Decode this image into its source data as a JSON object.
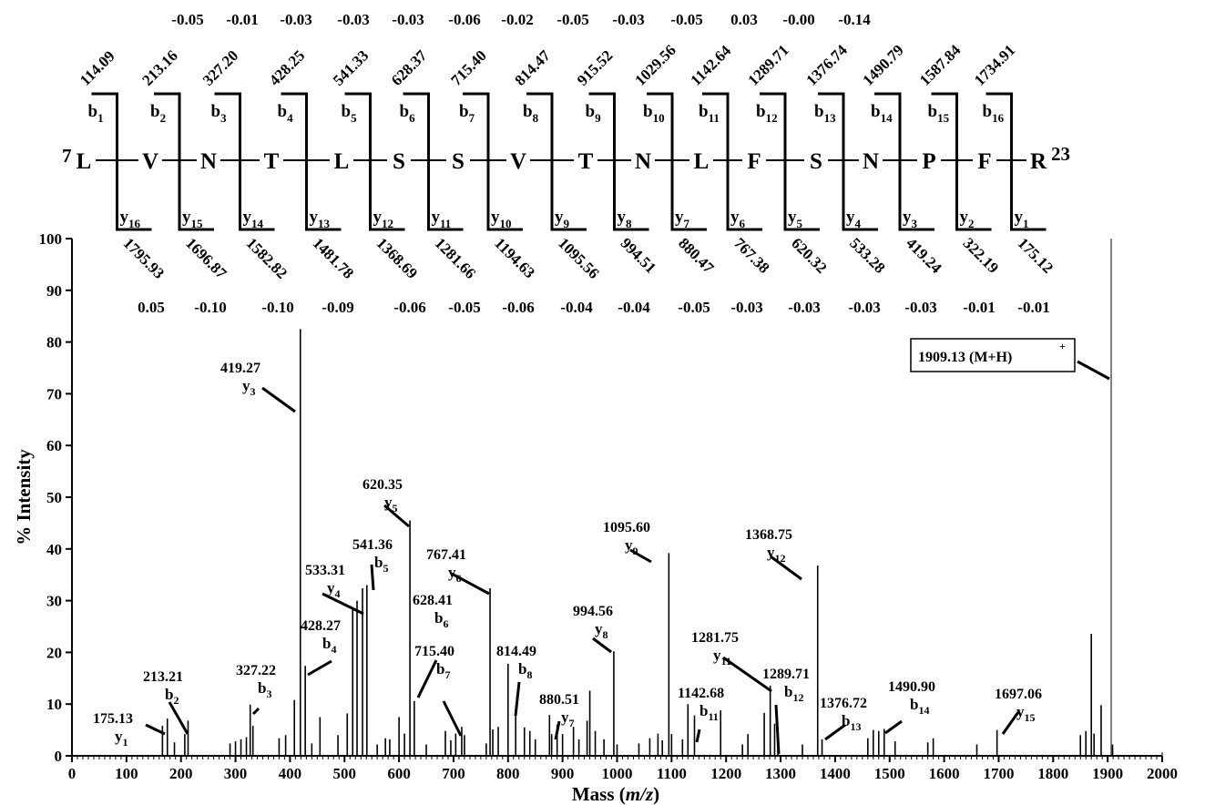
{
  "chart_data": {
    "type": "bar",
    "xlabel_main": "Mass (",
    "xlabel_italic": "m/z",
    "xlabel_close": ")",
    "ylabel": "% Intensity",
    "xlim": [
      0,
      2000
    ],
    "ylim": [
      0,
      100
    ],
    "x_ticks": [
      "0",
      "100",
      "200",
      "300",
      "400",
      "500",
      "600",
      "700",
      "800",
      "900",
      "1000",
      "1100",
      "1200",
      "1300",
      "1400",
      "1500",
      "1600",
      "1700",
      "1800",
      "1900",
      "2000"
    ],
    "y_ticks": [
      "0",
      "10",
      "20",
      "30",
      "40",
      "50",
      "60",
      "70",
      "80",
      "90",
      "100"
    ],
    "grid": false,
    "sequence": {
      "start": "7",
      "end": "23",
      "residues": [
        "L",
        "V",
        "N",
        "T",
        "L",
        "S",
        "S",
        "V",
        "T",
        "N",
        "L",
        "F",
        "S",
        "N",
        "P",
        "F",
        "R"
      ],
      "b_ions": [
        {
          "n": "1",
          "mass": "114.09"
        },
        {
          "n": "2",
          "mass": "213.16"
        },
        {
          "n": "3",
          "mass": "327.20"
        },
        {
          "n": "4",
          "mass": "428.25"
        },
        {
          "n": "5",
          "mass": "541.33"
        },
        {
          "n": "6",
          "mass": "628.37"
        },
        {
          "n": "7",
          "mass": "715.40"
        },
        {
          "n": "8",
          "mass": "814.47"
        },
        {
          "n": "9",
          "mass": "915.52"
        },
        {
          "n": "10",
          "mass": "1029.56"
        },
        {
          "n": "11",
          "mass": "1142.64"
        },
        {
          "n": "12",
          "mass": "1289.71"
        },
        {
          "n": "13",
          "mass": "1376.74"
        },
        {
          "n": "14",
          "mass": "1490.79"
        },
        {
          "n": "15",
          "mass": "1587.84"
        },
        {
          "n": "16",
          "mass": "1734.91"
        }
      ],
      "b_errors": [
        "-0.05",
        "-0.01",
        "-0.03",
        "-0.03",
        "-0.03",
        "-0.06",
        "-0.02",
        "-0.05",
        "-0.03",
        "-0.05",
        "0.03",
        "-0.00",
        "-0.14"
      ],
      "y_ions": [
        {
          "n": "16",
          "mass": "1795.93"
        },
        {
          "n": "15",
          "mass": "1696.87"
        },
        {
          "n": "14",
          "mass": "1582.82"
        },
        {
          "n": "13",
          "mass": "1481.78"
        },
        {
          "n": "12",
          "mass": "1368.69"
        },
        {
          "n": "11",
          "mass": "1281.66"
        },
        {
          "n": "10",
          "mass": "1194.63"
        },
        {
          "n": "9",
          "mass": "1095.56"
        },
        {
          "n": "8",
          "mass": "994.51"
        },
        {
          "n": "7",
          "mass": "880.47"
        },
        {
          "n": "6",
          "mass": "767.38"
        },
        {
          "n": "5",
          "mass": "620.32"
        },
        {
          "n": "4",
          "mass": "533.28"
        },
        {
          "n": "3",
          "mass": "419.24"
        },
        {
          "n": "2",
          "mass": "322.19"
        },
        {
          "n": "1",
          "mass": "175.12"
        }
      ],
      "y_errors": [
        "0.05",
        "-0.10",
        "-0.10",
        "-0.09",
        "-0.06",
        "-0.05",
        "-0.06",
        "-0.04",
        "-0.04",
        "-0.05",
        "-0.03",
        "-0.03",
        "-0.03",
        "-0.03",
        "-0.01",
        "-0.01"
      ]
    },
    "annotations": [
      {
        "mass": "175.13",
        "ion": "y",
        "sub": "1"
      },
      {
        "mass": "213.21",
        "ion": "b",
        "sub": "2"
      },
      {
        "mass": "327.22",
        "ion": "b",
        "sub": "3"
      },
      {
        "mass": "419.27",
        "ion": "y",
        "sub": "3"
      },
      {
        "mass": "428.27",
        "ion": "b",
        "sub": "4"
      },
      {
        "mass": "533.31",
        "ion": "y",
        "sub": "4"
      },
      {
        "mass": "541.36",
        "ion": "b",
        "sub": "5"
      },
      {
        "mass": "620.35",
        "ion": "y",
        "sub": "5"
      },
      {
        "mass": "628.41",
        "ion": "b",
        "sub": "6"
      },
      {
        "mass": "715.40",
        "ion": "b",
        "sub": "7"
      },
      {
        "mass": "767.41",
        "ion": "y",
        "sub": "6"
      },
      {
        "mass": "814.49",
        "ion": "b",
        "sub": "8"
      },
      {
        "mass": "880.51",
        "ion": "y",
        "sub": "7"
      },
      {
        "mass": "994.56",
        "ion": "y",
        "sub": "8"
      },
      {
        "mass": "1095.60",
        "ion": "y",
        "sub": "9"
      },
      {
        "mass": "1142.68",
        "ion": "b",
        "sub": "11"
      },
      {
        "mass": "1281.75",
        "ion": "y",
        "sub": "11"
      },
      {
        "mass": "1289.71",
        "ion": "b",
        "sub": "12"
      },
      {
        "mass": "1368.75",
        "ion": "y",
        "sub": "12"
      },
      {
        "mass": "1376.72",
        "ion": "b",
        "sub": "13"
      },
      {
        "mass": "1490.90",
        "ion": "b",
        "sub": "14"
      },
      {
        "mass": "1697.06",
        "ion": "y",
        "sub": "15"
      }
    ],
    "precursor_label": "1909.13 (M+H)",
    "precursor_charge": "+",
    "peaks": [
      {
        "x": 166,
        "y": 5.8
      },
      {
        "x": 175,
        "y": 7.2
      },
      {
        "x": 188,
        "y": 2.6
      },
      {
        "x": 207,
        "y": 4.2
      },
      {
        "x": 213,
        "y": 6.8
      },
      {
        "x": 290,
        "y": 2.4
      },
      {
        "x": 300,
        "y": 2.8
      },
      {
        "x": 310,
        "y": 3.2
      },
      {
        "x": 320,
        "y": 3.6
      },
      {
        "x": 327,
        "y": 9.9
      },
      {
        "x": 332,
        "y": 5.8
      },
      {
        "x": 380,
        "y": 3.4
      },
      {
        "x": 392,
        "y": 4.0
      },
      {
        "x": 408,
        "y": 10.8
      },
      {
        "x": 419,
        "y": 82.5
      },
      {
        "x": 428,
        "y": 17.4
      },
      {
        "x": 440,
        "y": 2.4
      },
      {
        "x": 455,
        "y": 7.5
      },
      {
        "x": 488,
        "y": 4.0
      },
      {
        "x": 505,
        "y": 8.2
      },
      {
        "x": 515,
        "y": 28.3
      },
      {
        "x": 523,
        "y": 30.0
      },
      {
        "x": 533,
        "y": 32.4
      },
      {
        "x": 541,
        "y": 33.0
      },
      {
        "x": 560,
        "y": 2.2
      },
      {
        "x": 575,
        "y": 3.4
      },
      {
        "x": 583,
        "y": 3.2
      },
      {
        "x": 600,
        "y": 7.5
      },
      {
        "x": 610,
        "y": 4.3
      },
      {
        "x": 620,
        "y": 45.5
      },
      {
        "x": 628,
        "y": 10.6
      },
      {
        "x": 650,
        "y": 2.2
      },
      {
        "x": 685,
        "y": 4.8
      },
      {
        "x": 695,
        "y": 3.0
      },
      {
        "x": 704,
        "y": 4.3
      },
      {
        "x": 715,
        "y": 5.6
      },
      {
        "x": 720,
        "y": 4.0
      },
      {
        "x": 760,
        "y": 2.4
      },
      {
        "x": 767,
        "y": 32.4
      },
      {
        "x": 772,
        "y": 5.1
      },
      {
        "x": 782,
        "y": 5.6
      },
      {
        "x": 800,
        "y": 17.8
      },
      {
        "x": 814,
        "y": 7.8
      },
      {
        "x": 830,
        "y": 5.5
      },
      {
        "x": 840,
        "y": 4.8
      },
      {
        "x": 850,
        "y": 3.2
      },
      {
        "x": 876,
        "y": 7.9
      },
      {
        "x": 880,
        "y": 4.2
      },
      {
        "x": 890,
        "y": 6.0
      },
      {
        "x": 900,
        "y": 4.2
      },
      {
        "x": 920,
        "y": 5.6
      },
      {
        "x": 930,
        "y": 3.2
      },
      {
        "x": 945,
        "y": 6.8
      },
      {
        "x": 950,
        "y": 12.6
      },
      {
        "x": 960,
        "y": 4.8
      },
      {
        "x": 976,
        "y": 3.2
      },
      {
        "x": 994,
        "y": 20.2
      },
      {
        "x": 1000,
        "y": 2.2
      },
      {
        "x": 1040,
        "y": 2.4
      },
      {
        "x": 1060,
        "y": 3.4
      },
      {
        "x": 1075,
        "y": 4.3
      },
      {
        "x": 1083,
        "y": 3.0
      },
      {
        "x": 1095,
        "y": 39.2
      },
      {
        "x": 1100,
        "y": 4.2
      },
      {
        "x": 1120,
        "y": 3.2
      },
      {
        "x": 1130,
        "y": 10.0
      },
      {
        "x": 1142,
        "y": 7.8
      },
      {
        "x": 1190,
        "y": 8.8
      },
      {
        "x": 1230,
        "y": 2.2
      },
      {
        "x": 1240,
        "y": 4.2
      },
      {
        "x": 1270,
        "y": 8.3
      },
      {
        "x": 1281,
        "y": 13.6
      },
      {
        "x": 1289,
        "y": 6.2
      },
      {
        "x": 1295,
        "y": 5.6
      },
      {
        "x": 1340,
        "y": 2.2
      },
      {
        "x": 1368,
        "y": 36.8
      },
      {
        "x": 1376,
        "y": 3.2
      },
      {
        "x": 1460,
        "y": 3.4
      },
      {
        "x": 1470,
        "y": 5.0
      },
      {
        "x": 1480,
        "y": 4.8
      },
      {
        "x": 1490,
        "y": 5.2
      },
      {
        "x": 1510,
        "y": 2.8
      },
      {
        "x": 1570,
        "y": 2.6
      },
      {
        "x": 1580,
        "y": 3.4
      },
      {
        "x": 1660,
        "y": 2.2
      },
      {
        "x": 1697,
        "y": 5.0
      },
      {
        "x": 1850,
        "y": 4.0
      },
      {
        "x": 1860,
        "y": 4.8
      },
      {
        "x": 1870,
        "y": 23.6
      },
      {
        "x": 1875,
        "y": 4.3
      },
      {
        "x": 1888,
        "y": 9.8
      },
      {
        "x": 1909,
        "y": 2.2
      }
    ]
  }
}
